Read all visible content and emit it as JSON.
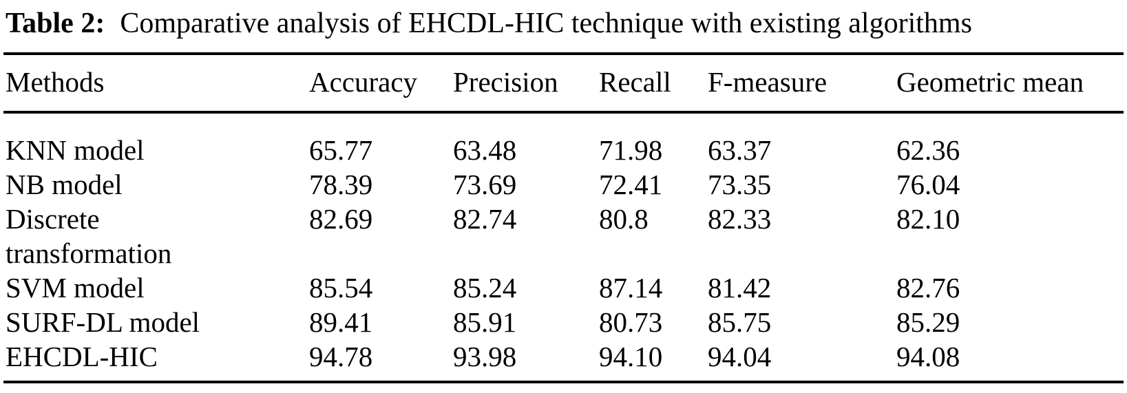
{
  "caption": {
    "label": "Table 2:",
    "text": "Comparative analysis of EHCDL-HIC technique with existing algorithms"
  },
  "table": {
    "columns": [
      "Methods",
      "Accuracy",
      "Precision",
      "Recall",
      "F-measure",
      "Geometric mean"
    ],
    "rows": [
      {
        "method": "KNN model",
        "values": [
          "65.77",
          "63.48",
          "71.98",
          "63.37",
          "62.36"
        ]
      },
      {
        "method": "NB model",
        "values": [
          "78.39",
          "73.69",
          "72.41",
          "73.35",
          "76.04"
        ]
      },
      {
        "method": "Discrete\ntransformation",
        "values": [
          "82.69",
          "82.74",
          "80.8",
          "82.33",
          "82.10"
        ]
      },
      {
        "method": "SVM model",
        "values": [
          "85.54",
          "85.24",
          "87.14",
          "81.42",
          "82.76"
        ]
      },
      {
        "method": "SURF-DL model",
        "values": [
          "89.41",
          "85.91",
          "80.73",
          "85.75",
          "85.29"
        ]
      },
      {
        "method": "EHCDL-HIC",
        "values": [
          "94.78",
          "93.98",
          "94.10",
          "94.04",
          "94.08"
        ]
      }
    ]
  },
  "colors": {
    "background": "#ffffff",
    "text": "#000000",
    "rule": "#000000"
  }
}
